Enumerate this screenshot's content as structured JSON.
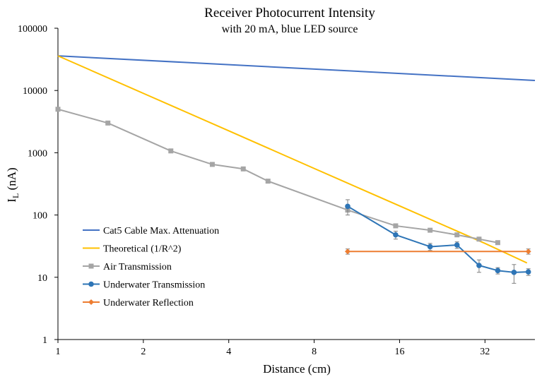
{
  "chart_data": {
    "type": "line",
    "title": "Receiver Photocurrent Intensity",
    "subtitle": "with 20 mA, blue LED source",
    "xlabel": "Distance (cm)",
    "ylabel_main": "I",
    "ylabel_sub": "L",
    "ylabel_rest": " (nA)",
    "x_scale": "log2",
    "y_scale": "log10",
    "xlim": [
      1,
      48
    ],
    "ylim": [
      1,
      100000
    ],
    "x_ticks": [
      1,
      2,
      4,
      8,
      16,
      32
    ],
    "x_tick_labels": [
      "1",
      "2",
      "4",
      "8",
      "16",
      "32"
    ],
    "y_ticks": [
      1,
      10,
      100,
      1000,
      10000,
      100000
    ],
    "y_tick_labels": [
      "1",
      "10",
      "100",
      "1000",
      "10000",
      "100000"
    ],
    "grid": false,
    "legend_position": "left-lower",
    "series": [
      {
        "name": "Cat5 Cable Max. Attenuation",
        "color": "#4472C4",
        "marker": "none",
        "x": [
          1,
          48
        ],
        "y": [
          36000,
          14500
        ],
        "err": []
      },
      {
        "name": "Theoretical (1/R^2)",
        "color": "#FFC000",
        "marker": "none",
        "x": [
          1,
          2,
          4,
          8,
          16,
          32,
          45
        ],
        "y": [
          36000,
          9000,
          2250,
          560,
          140,
          35,
          17
        ],
        "err": []
      },
      {
        "name": "Air Transmission",
        "color": "#A5A5A5",
        "marker": "square",
        "x": [
          1,
          1.5,
          2.5,
          3.5,
          4.5,
          5.5,
          10.5,
          15.5,
          20.5,
          25.5,
          30.5,
          35.5
        ],
        "y": [
          5000,
          3000,
          1070,
          650,
          550,
          350,
          120,
          67,
          57,
          48,
          41,
          36
        ],
        "err": []
      },
      {
        "name": "Underwater Transmission",
        "color": "#2E75B6",
        "marker": "circle",
        "x": [
          10.5,
          15.5,
          20.5,
          25.5,
          30.5,
          35.5,
          40.5,
          45.5
        ],
        "y": [
          138,
          48,
          31,
          33,
          15.5,
          12.8,
          12,
          12.2
        ],
        "err": [
          38,
          7,
          4,
          4,
          3.5,
          1.5,
          4,
          1.5
        ]
      },
      {
        "name": "Underwater Reflection",
        "color": "#ED7D31",
        "marker": "diamond",
        "x": [
          10.5,
          45.5
        ],
        "y": [
          26,
          26
        ],
        "err": [
          2.5,
          2.5
        ]
      }
    ]
  }
}
